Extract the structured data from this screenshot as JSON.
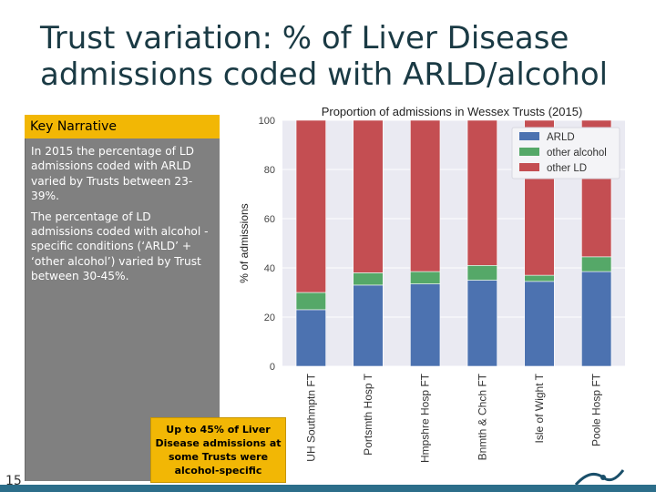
{
  "slide": {
    "title": "Trust variation: % of Liver Disease admissions coded with ARLD/alcohol",
    "page_number": "15"
  },
  "narrative": {
    "header": "Key Narrative",
    "paragraphs": [
      "In 2015 the percentage of LD admissions coded with ARLD varied by Trusts between 23-39%.",
      "The percentage of LD admissions coded with alcohol -specific conditions (‘ARLD’ + ‘other alcohol’) varied by Trust between 30-45%."
    ]
  },
  "callout": "Up to 45% of Liver Disease admissions at some Trusts were alcohol-specific",
  "chart_data": {
    "type": "bar",
    "stacked": true,
    "title": "Proportion of admissions in Wessex Trusts (2015)",
    "xlabel": "",
    "ylabel": "% of admissions",
    "ylim": [
      0,
      100
    ],
    "yticks": [
      0,
      20,
      40,
      60,
      80,
      100
    ],
    "grid": true,
    "legend_position": "top-right",
    "categories": [
      "UH Southmptn FT",
      "Portsmth Hosp T",
      "Hmpshre Hosp FT",
      "Bnmth & Chch FT",
      "Isle of Wight T",
      "Poole Hosp FT"
    ],
    "series": [
      {
        "name": "ARLD",
        "color": "#4c72b0",
        "values": [
          23,
          33,
          33.5,
          35,
          34.5,
          38.5
        ]
      },
      {
        "name": "other alcohol",
        "color": "#55a868",
        "values": [
          7,
          5,
          5,
          6,
          2.5,
          6
        ]
      },
      {
        "name": "other LD",
        "color": "#c44e52",
        "values": [
          70,
          62,
          61.5,
          59,
          63,
          55.5
        ]
      }
    ]
  }
}
